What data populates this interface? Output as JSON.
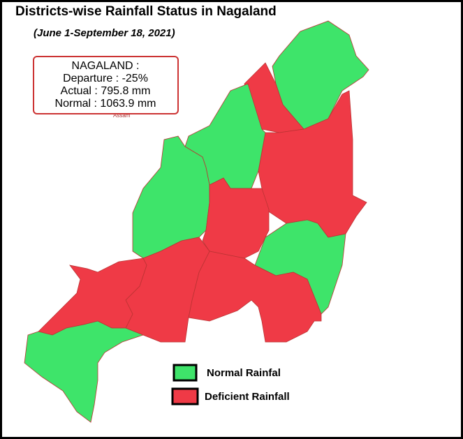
{
  "header": {
    "title": "Districts-wise Rainfall Status in Nagaland",
    "subtitle": "(June 1-September 18, 2021)"
  },
  "info_box": {
    "lines": [
      "NAGALAND :",
      "Departure : -25%",
      "Actual : 795.8 mm",
      "Normal : 1063.9 mm"
    ]
  },
  "map": {
    "labels": [
      "Assam"
    ]
  },
  "legend": {
    "items": [
      {
        "name": "Normal Rainfal",
        "color": "#3ee46a"
      },
      {
        "name": "Deficient Rainfall",
        "color": "#ef3a46"
      }
    ]
  }
}
